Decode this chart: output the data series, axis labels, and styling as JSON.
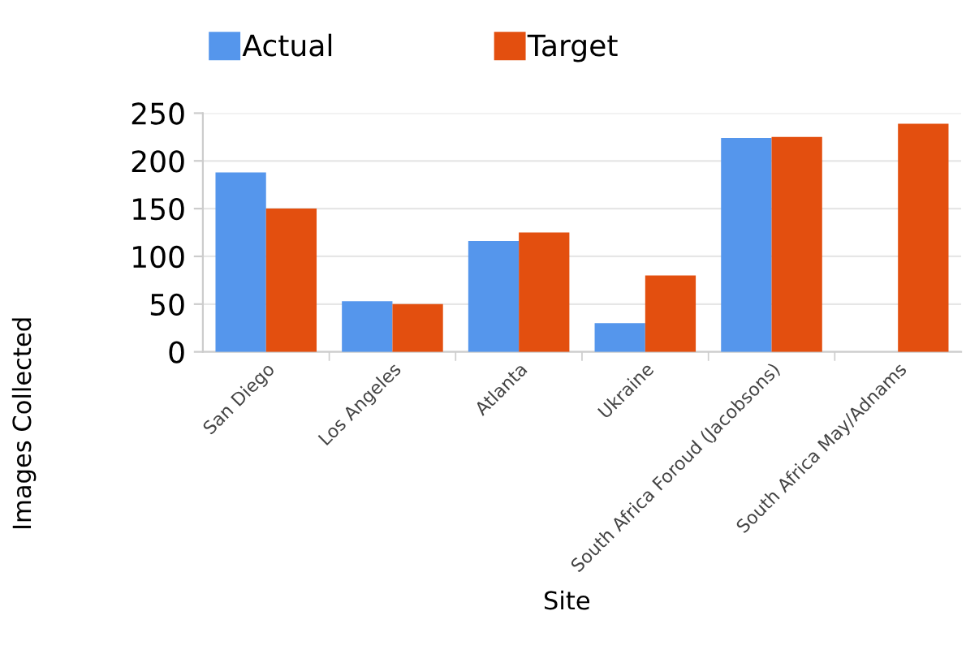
{
  "chart_data": {
    "type": "bar",
    "xlabel": "Site",
    "ylabel": "Images Collected",
    "categories": [
      "San Diego",
      "Los Angeles",
      "Atlanta",
      "Ukraine",
      "South Africa Foroud (Jacobsons)",
      "South Africa May/Adnams"
    ],
    "series": [
      {
        "name": "Actual",
        "color": "#5596ec",
        "values": [
          188,
          53,
          116,
          30,
          224,
          null
        ]
      },
      {
        "name": "Target",
        "color": "#e34f0f",
        "values": [
          150,
          50,
          125,
          80,
          225,
          239
        ]
      }
    ],
    "ylim": [
      0,
      250
    ],
    "yticks": [
      0,
      50,
      100,
      150,
      200,
      250
    ],
    "grid": "y",
    "legend": "top left"
  }
}
